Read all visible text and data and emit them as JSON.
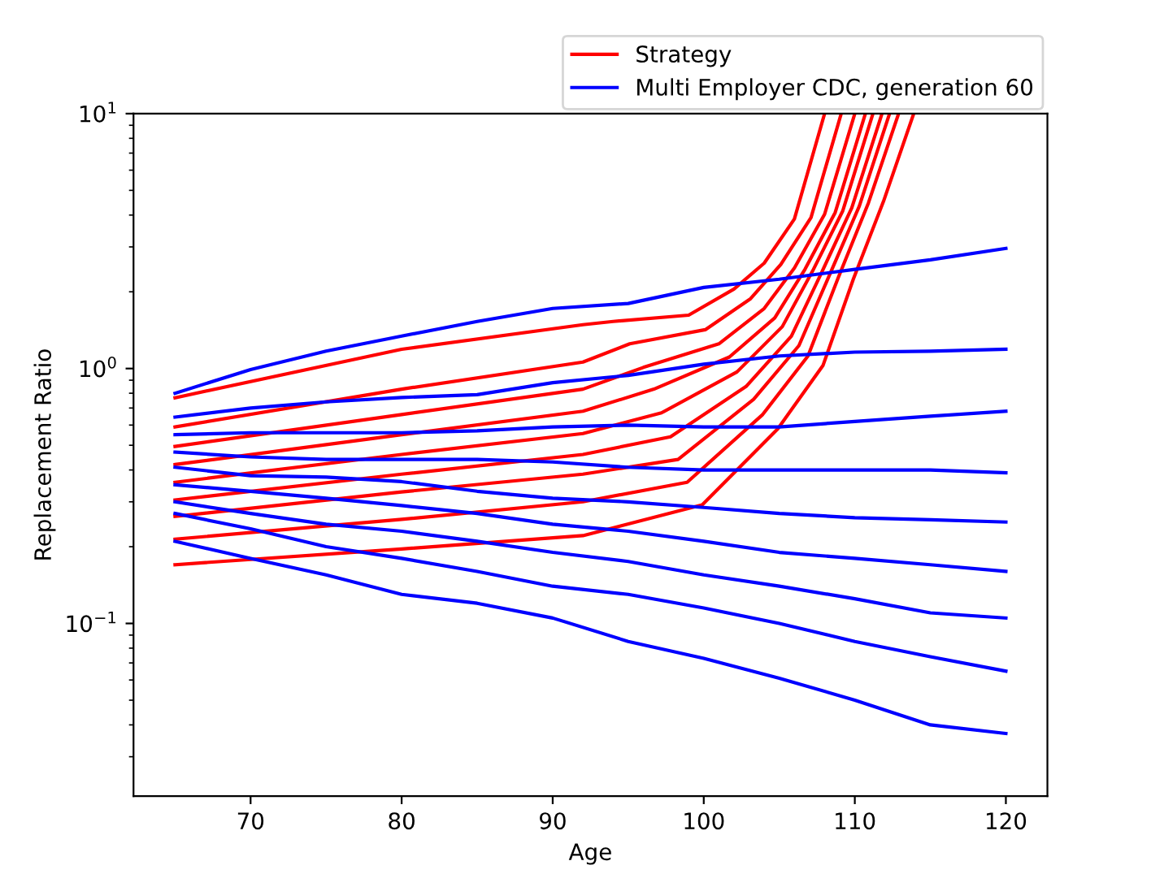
{
  "chart_data": {
    "type": "line",
    "xlabel": "Age",
    "ylabel": "Replacement Ratio",
    "log": "y",
    "xlim": [
      62.25,
      122.75
    ],
    "ylim": [
      0.021,
      10
    ],
    "xticks": [
      70,
      80,
      90,
      100,
      110,
      120
    ],
    "yticks": [
      {
        "value": 0.1,
        "label": "10$^{−1}$"
      },
      {
        "value": 1,
        "label": "10$^{0}$"
      },
      {
        "value": 10,
        "label": "10$^{1}$"
      }
    ],
    "grid": false,
    "legend": "top right",
    "marker": "none",
    "line_style": "solid",
    "x": [
      65,
      70,
      75,
      80,
      85,
      90,
      95,
      100,
      105,
      110,
      115,
      120
    ],
    "series": [
      {
        "name": "Strategy",
        "color": "#ff0000",
        "x": [
          65,
          80,
          92,
          94,
          99,
          102,
          104,
          106,
          108
        ],
        "values": [
          0.768,
          1.19,
          1.486,
          1.53,
          1.62,
          2.05,
          2.59,
          3.86,
          10
        ]
      },
      {
        "color": "#ff0000",
        "x": [
          65,
          80,
          92,
          95.1,
          100.1,
          103.1,
          105.1,
          107.1,
          109.1
        ],
        "values": [
          0.59,
          0.83,
          1.06,
          1.25,
          1.42,
          1.88,
          2.56,
          3.91,
          10
        ]
      },
      {
        "color": "#ff0000",
        "x": [
          65,
          80,
          92,
          96,
          101,
          104,
          106,
          108,
          110
        ],
        "values": [
          0.495,
          0.66,
          0.83,
          1.01,
          1.25,
          1.72,
          2.48,
          4.03,
          10
        ]
      },
      {
        "color": "#ff0000",
        "x": [
          65,
          80,
          92,
          96.7,
          101.7,
          104.7,
          106.7,
          108.7,
          110.7
        ],
        "values": [
          0.42,
          0.55,
          0.68,
          0.83,
          1.11,
          1.58,
          2.45,
          4.09,
          10
        ]
      },
      {
        "color": "#ff0000",
        "x": [
          65,
          80,
          92,
          97.2,
          102.2,
          105.2,
          107.2,
          109.2,
          111.2
        ],
        "values": [
          0.358,
          0.46,
          0.556,
          0.67,
          0.97,
          1.46,
          2.41,
          4.15,
          10
        ]
      },
      {
        "color": "#ff0000",
        "x": [
          65,
          80,
          92,
          97.8,
          102.8,
          105.8,
          107.8,
          109.8,
          111.8
        ],
        "values": [
          0.305,
          0.385,
          0.46,
          0.54,
          0.85,
          1.34,
          2.38,
          4.27,
          10
        ]
      },
      {
        "color": "#ff0000",
        "x": [
          65,
          80,
          92,
          98.3,
          103.3,
          106.3,
          108.3,
          110.3,
          112.3
        ],
        "values": [
          0.263,
          0.328,
          0.385,
          0.44,
          0.757,
          1.23,
          2.31,
          4.34,
          10
        ]
      },
      {
        "color": "#ff0000",
        "x": [
          65,
          80,
          92,
          98.9,
          103.9,
          106.9,
          108.9,
          110.9,
          112.9
        ],
        "values": [
          0.214,
          0.256,
          0.3,
          0.358,
          0.66,
          1.12,
          2.27,
          4.46,
          10
        ]
      },
      {
        "color": "#ff0000",
        "x": [
          65,
          80,
          92,
          99.9,
          104.9,
          107.9,
          109.9,
          111.9,
          113.9
        ],
        "values": [
          0.17,
          0.196,
          0.221,
          0.292,
          0.58,
          1.03,
          2.24,
          4.53,
          10
        ]
      },
      {
        "name": "Multi Employer CDC, generation 60",
        "color": "#0000ff",
        "values": [
          0.8,
          0.99,
          1.17,
          1.34,
          1.53,
          1.72,
          1.8,
          2.08,
          2.24,
          2.45,
          2.67,
          2.96
        ]
      },
      {
        "color": "#0000ff",
        "values": [
          0.645,
          0.7,
          0.74,
          0.77,
          0.79,
          0.88,
          0.94,
          1.04,
          1.12,
          1.16,
          1.17,
          1.19
        ]
      },
      {
        "color": "#0000ff",
        "values": [
          0.55,
          0.56,
          0.56,
          0.56,
          0.57,
          0.59,
          0.6,
          0.59,
          0.59,
          0.62,
          0.65,
          0.68
        ]
      },
      {
        "color": "#0000ff",
        "values": [
          0.47,
          0.45,
          0.44,
          0.44,
          0.44,
          0.43,
          0.41,
          0.4,
          0.4,
          0.4,
          0.4,
          0.39
        ]
      },
      {
        "color": "#0000ff",
        "values": [
          0.41,
          0.38,
          0.375,
          0.36,
          0.33,
          0.31,
          0.3,
          0.285,
          0.27,
          0.26,
          0.255,
          0.25
        ]
      },
      {
        "color": "#0000ff",
        "values": [
          0.35,
          0.33,
          0.31,
          0.29,
          0.27,
          0.245,
          0.23,
          0.21,
          0.19,
          0.18,
          0.17,
          0.16
        ]
      },
      {
        "color": "#0000ff",
        "values": [
          0.3,
          0.27,
          0.245,
          0.23,
          0.21,
          0.19,
          0.175,
          0.155,
          0.14,
          0.125,
          0.11,
          0.105
        ]
      },
      {
        "color": "#0000ff",
        "values": [
          0.27,
          0.235,
          0.2,
          0.18,
          0.16,
          0.14,
          0.13,
          0.115,
          0.1,
          0.085,
          0.074,
          0.065
        ]
      },
      {
        "color": "#0000ff",
        "values": [
          0.21,
          0.18,
          0.155,
          0.13,
          0.12,
          0.105,
          0.085,
          0.073,
          0.061,
          0.05,
          0.04,
          0.037
        ]
      }
    ]
  }
}
